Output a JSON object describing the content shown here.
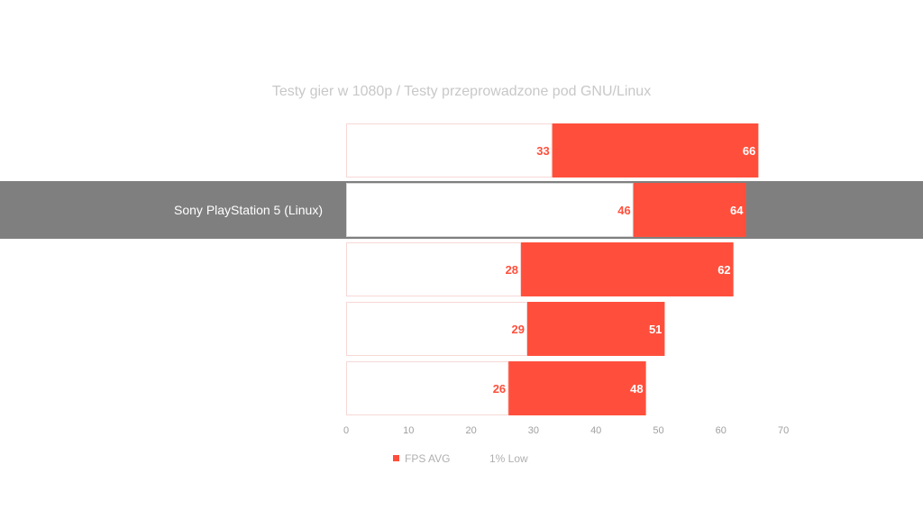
{
  "chart_data": {
    "type": "bar",
    "orientation": "horizontal",
    "title": "Testy gier w 1080p / Testy przeprowadzone pod GNU/Linux",
    "categories": [
      "",
      "Sony PlayStation 5 (Linux)",
      "",
      "",
      ""
    ],
    "highlighted_category": "Sony PlayStation 5 (Linux)",
    "series": [
      {
        "name": "FPS AVG",
        "values": [
          66,
          64,
          62,
          51,
          48
        ]
      },
      {
        "name": "1% Low",
        "values": [
          33,
          46,
          28,
          29,
          26
        ]
      }
    ],
    "xlim": [
      0,
      70
    ],
    "xticks": [
      "0",
      "10",
      "20",
      "30",
      "40",
      "50",
      "60",
      "70"
    ],
    "xlabel": "",
    "ylabel": "",
    "grid": false,
    "legend_position": "bottom"
  },
  "colors": {
    "fps_avg": "#ff4f3c",
    "low_1": "#ffffff",
    "low_1_border": "#f6d8d6",
    "highlight_band": "#7f7f7f",
    "avg_label": "#ffffff",
    "low_label": "#ff4f3c"
  }
}
